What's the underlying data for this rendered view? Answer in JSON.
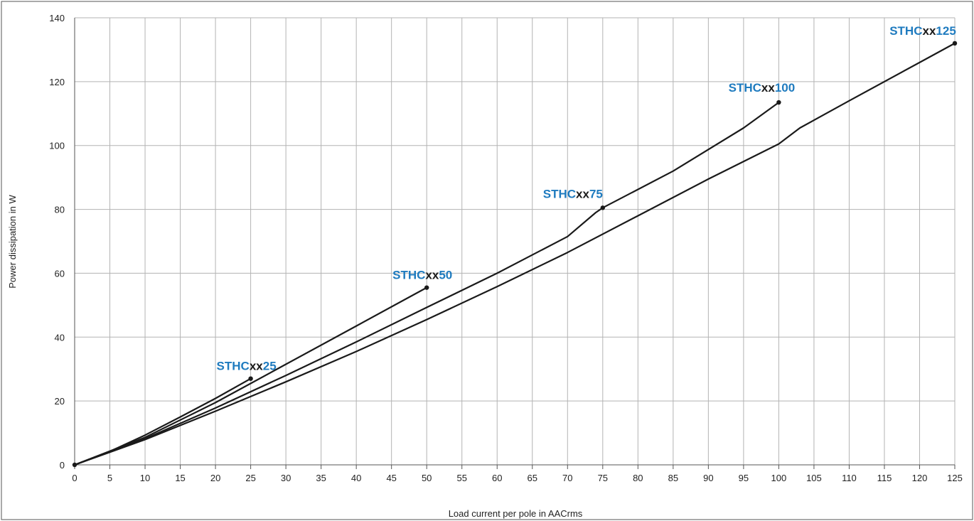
{
  "chart_data": {
    "type": "line",
    "title": "",
    "xlabel": "Load current per pole in AACrms",
    "ylabel": "Power dissipation in W",
    "xlim": [
      0,
      125
    ],
    "ylim": [
      0,
      140
    ],
    "x_ticks": [
      0,
      5,
      10,
      15,
      20,
      25,
      30,
      35,
      40,
      45,
      50,
      55,
      60,
      65,
      70,
      75,
      80,
      85,
      90,
      95,
      100,
      105,
      110,
      115,
      120,
      125
    ],
    "y_ticks": [
      0,
      20,
      40,
      60,
      80,
      100,
      120,
      140
    ],
    "grid": true,
    "legend": "none",
    "colors": {
      "line": "#1a1a1a",
      "label_blue": "#1f7bbf",
      "label_black": "#1a1a1a",
      "grid": "#b3b3b3"
    },
    "series": [
      {
        "label_parts": [
          {
            "text": "STHC",
            "color": "blue"
          },
          {
            "text": "xx",
            "color": "black"
          },
          {
            "text": "25",
            "color": "blue"
          }
        ],
        "x": [
          0,
          5,
          10,
          15,
          20,
          25
        ],
        "y": [
          0,
          4.2,
          9.3,
          15,
          20.8,
          27
        ]
      },
      {
        "label_parts": [
          {
            "text": "STHC",
            "color": "blue"
          },
          {
            "text": "xx",
            "color": "black"
          },
          {
            "text": "50",
            "color": "blue"
          }
        ],
        "x": [
          0,
          10,
          20,
          30,
          40,
          50
        ],
        "y": [
          0,
          8.6,
          19.5,
          31.5,
          43.5,
          55.5
        ]
      },
      {
        "label_parts": [
          {
            "text": "STHC",
            "color": "blue"
          },
          {
            "text": "xx",
            "color": "black"
          },
          {
            "text": "75",
            "color": "blue"
          }
        ],
        "x": [
          0,
          10,
          20,
          30,
          40,
          50,
          60,
          70,
          74,
          75
        ],
        "y": [
          0,
          8.2,
          17.8,
          28,
          38.5,
          49.3,
          60,
          71.5,
          79,
          80.5
        ]
      },
      {
        "label_parts": [
          {
            "text": "STHC",
            "color": "blue"
          },
          {
            "text": "xx",
            "color": "black"
          },
          {
            "text": "100",
            "color": "blue"
          }
        ],
        "x": [
          75,
          85,
          95,
          100
        ],
        "y": [
          80.5,
          92,
          105.5,
          113.5
        ]
      },
      {
        "label_parts": [
          {
            "text": "STHC",
            "color": "blue"
          },
          {
            "text": "xx",
            "color": "black"
          },
          {
            "text": "125",
            "color": "blue"
          }
        ],
        "x": [
          0,
          10,
          20,
          30,
          40,
          50,
          60,
          70,
          80,
          90,
          100,
          103,
          110,
          120,
          125
        ],
        "y": [
          0,
          7.9,
          16.8,
          26,
          35.5,
          45.5,
          55.8,
          66.5,
          78,
          89.5,
          100.5,
          105.5,
          114,
          126,
          132
        ]
      }
    ]
  }
}
